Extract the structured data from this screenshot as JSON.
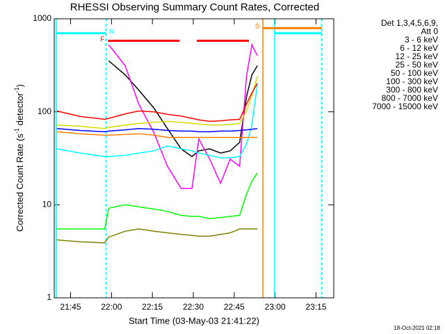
{
  "chart_data": {
    "type": "line",
    "title": "RHESSI Observing Summary Count Rates, Corrected",
    "xlabel": "Start Time (03-May-03 21:41:22)",
    "ylabel": [
      "Corrected Count Rate (s",
      "-1",
      " detector",
      "-1",
      ")"
    ],
    "footer": "18-Oct-2021 02:18",
    "legend_title": [
      "Det 1,3,4,5,6,9,",
      "Att 0"
    ],
    "legend": "top-right",
    "log_y": true,
    "xlim": [
      1299,
      1401.5
    ],
    "ylim": [
      1,
      1000
    ],
    "yticks": [
      1,
      10,
      100,
      1000
    ],
    "xticks": [
      {
        "value": 1305,
        "label": "21:45"
      },
      {
        "value": 1320,
        "label": "22:00"
      },
      {
        "value": 1335,
        "label": "22:15"
      },
      {
        "value": 1350,
        "label": "22:30"
      },
      {
        "value": 1365,
        "label": "22:45"
      },
      {
        "value": 1380,
        "label": "23:00"
      },
      {
        "value": 1395,
        "label": "23:15"
      }
    ],
    "x": [
      1300,
      1308.5,
      1317.5,
      1319,
      1325,
      1330,
      1335.5,
      1340.5,
      1345.5,
      1349.5,
      1352,
      1356,
      1360,
      1363.5,
      1367,
      1369.5,
      1371.5,
      1373.5
    ],
    "series": [
      {
        "name": "3 - 6 keV",
        "color": "#000000",
        "values": [
          null,
          null,
          null,
          353,
          250,
          171,
          110,
          66,
          40,
          33,
          38,
          40,
          36,
          38,
          47,
          145,
          250,
          313
        ]
      },
      {
        "name": "6 - 12 keV",
        "color": "#ff00ff",
        "values": [
          null,
          null,
          null,
          525,
          313,
          121,
          60,
          26,
          15,
          15,
          51,
          31,
          17,
          31,
          26,
          242,
          525,
          400
        ]
      },
      {
        "name": "12 - 25 keV",
        "color": "#00ff00",
        "values": [
          5.5,
          5.5,
          5.5,
          9.2,
          10,
          9.5,
          9,
          8.5,
          7.7,
          7.5,
          7.5,
          7.1,
          7.3,
          7.5,
          7.7,
          13,
          18,
          22
        ]
      },
      {
        "name": "25 - 50 keV",
        "color": "#00ffff",
        "values": [
          40,
          36,
          33,
          33,
          34,
          36,
          38,
          43,
          40,
          38,
          36,
          34,
          32,
          32,
          33,
          45,
          72,
          203
        ]
      },
      {
        "name": "50 - 100 keV",
        "color": "#d8d800",
        "values": [
          72,
          70,
          66,
          68,
          72,
          75,
          77,
          79,
          77,
          75,
          74,
          72,
          72,
          73,
          75,
          102,
          150,
          242
        ]
      },
      {
        "name": "100 - 300 keV",
        "color": "#ff0000",
        "values": [
          102,
          89,
          83,
          85,
          95,
          102,
          100,
          94,
          90,
          85,
          82,
          79,
          80,
          82,
          83,
          121,
          160,
          203
        ]
      },
      {
        "name": "300 - 800 keV",
        "color": "#0000ff",
        "values": [
          66,
          63,
          61,
          62,
          64,
          66,
          65,
          63,
          62,
          62,
          61,
          61,
          62,
          62,
          63,
          64,
          65,
          66
        ]
      },
      {
        "name": "800 - 7000 keV",
        "color": "#ff8000",
        "values": [
          61,
          58,
          56,
          56,
          57,
          58,
          56,
          53,
          53,
          53,
          53,
          53,
          53,
          53,
          53,
          53,
          53,
          53
        ]
      },
      {
        "name": "7000 - 15000 keV",
        "color": "#808000",
        "values": [
          4.2,
          4,
          3.9,
          4.5,
          5.2,
          5.5,
          5.2,
          5,
          4.8,
          4.7,
          4.6,
          4.6,
          4.8,
          5,
          5.5,
          5.5,
          5.5,
          5.5
        ]
      }
    ],
    "vlines": [
      {
        "x": 1299.7,
        "color": "#00ffff",
        "dashed": false
      },
      {
        "x": 1318,
        "color": "#00ffff",
        "dashed": true
      },
      {
        "x": 1375.5,
        "color": "#ff8000",
        "dashed": false
      },
      {
        "x": 1379.8,
        "color": "#00ffff",
        "dashed": false
      },
      {
        "x": 1397.1,
        "color": "#00ffff",
        "dashed": true
      }
    ],
    "flags": [
      {
        "label": "N",
        "color": "#00ffff",
        "level": 700,
        "intervals": [
          [
            1299.7,
            1318
          ],
          [
            1379.8,
            1397.1
          ]
        ]
      },
      {
        "label": "F",
        "color": "#ff0000",
        "level": 580,
        "intervals": [
          [
            1318.7,
            1345
          ],
          [
            1351.3,
            1370.4
          ]
        ]
      },
      {
        "label": "S",
        "color": "#ff8000",
        "level": 795,
        "intervals": [
          [
            1375.5,
            1397.1
          ]
        ]
      }
    ]
  }
}
